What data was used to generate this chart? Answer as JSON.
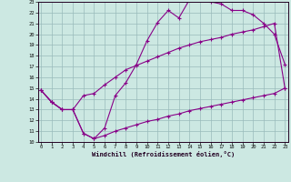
{
  "bg_color": "#cce8e2",
  "line_color": "#880088",
  "xmin": 0,
  "xmax": 23,
  "ymin": 10,
  "ymax": 23,
  "series1_x": [
    0,
    1,
    2,
    3,
    4,
    5,
    6,
    7,
    8,
    9,
    10,
    11,
    12,
    13,
    14,
    15,
    16,
    17,
    18,
    19,
    20,
    21,
    22,
    23
  ],
  "series1_y": [
    14.8,
    13.7,
    13.0,
    13.0,
    10.8,
    10.3,
    11.3,
    14.3,
    15.5,
    17.2,
    19.4,
    21.1,
    22.2,
    21.5,
    23.2,
    23.2,
    23.0,
    22.8,
    22.2,
    22.2,
    21.8,
    21.0,
    20.0,
    17.2
  ],
  "series2_x": [
    0,
    1,
    2,
    3,
    4,
    5,
    6,
    7,
    8,
    9,
    10,
    11,
    12,
    13,
    14,
    15,
    16,
    17,
    18,
    19,
    20,
    21,
    22,
    23
  ],
  "series2_y": [
    14.8,
    13.7,
    13.0,
    13.0,
    14.3,
    14.5,
    15.3,
    16.0,
    16.7,
    17.1,
    17.5,
    17.9,
    18.3,
    18.7,
    19.0,
    19.3,
    19.5,
    19.7,
    20.0,
    20.2,
    20.4,
    20.7,
    21.0,
    15.0
  ],
  "series3_x": [
    0,
    1,
    2,
    3,
    4,
    5,
    6,
    7,
    8,
    9,
    10,
    11,
    12,
    13,
    14,
    15,
    16,
    17,
    18,
    19,
    20,
    21,
    22,
    23
  ],
  "series3_y": [
    14.8,
    13.7,
    13.0,
    13.0,
    10.8,
    10.3,
    10.6,
    11.0,
    11.3,
    11.6,
    11.9,
    12.1,
    12.4,
    12.6,
    12.9,
    13.1,
    13.3,
    13.5,
    13.7,
    13.9,
    14.1,
    14.3,
    14.5,
    15.0
  ],
  "xlabel": "Windchill (Refroidissement éolien,°C)"
}
